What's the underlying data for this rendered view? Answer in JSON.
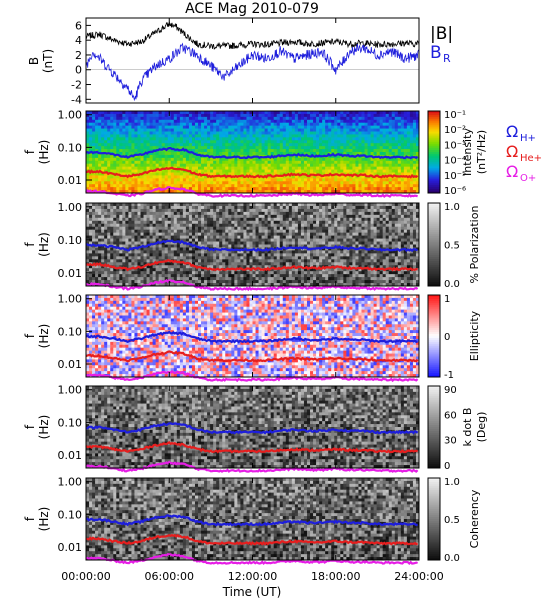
{
  "title": "ACE Mag 2010-079",
  "time_axis": {
    "label": "Time (UT)",
    "ticks": [
      "00:00:00",
      "06:00:00",
      "12:00:00",
      "18:00:00",
      "24:00:00"
    ],
    "range_hours": [
      0,
      24
    ]
  },
  "colors": {
    "B_total": "#000000",
    "B_R": "#1e1edc",
    "H_plus": "#1e1edc",
    "He_plus": "#e61e1e",
    "O_plus": "#e61ee6"
  },
  "chart_data": [
    {
      "type": "line",
      "panel": "B",
      "ylabel": "B",
      "yunit": "(nT)",
      "ylim": [
        -4.5,
        7
      ],
      "yticks": [
        "6",
        "4",
        "2",
        "0",
        "-2",
        "-4"
      ],
      "legend": [
        "|B|",
        "B"
      ],
      "legend_sub": [
        "",
        "R"
      ],
      "series": [
        {
          "name": "|B|",
          "x": [
            0,
            1,
            2,
            3,
            4,
            5,
            5.5,
            6,
            6.5,
            7,
            8,
            9,
            10,
            11,
            12,
            13,
            14,
            15,
            16,
            17,
            18,
            19,
            20,
            21,
            22,
            23,
            24
          ],
          "values": [
            4.5,
            4.8,
            4.0,
            3.5,
            3.8,
            5.0,
            5.6,
            6.2,
            5.8,
            5.0,
            3.5,
            3.2,
            3.2,
            3.3,
            3.5,
            3.4,
            3.6,
            3.8,
            3.5,
            3.6,
            3.8,
            3.5,
            3.6,
            3.4,
            3.5,
            3.6,
            3.5
          ]
        },
        {
          "name": "B_R",
          "x": [
            0,
            0.5,
            1,
            2,
            3,
            3.5,
            4,
            5,
            6,
            7,
            8,
            9,
            10,
            11,
            12,
            13,
            14,
            15,
            16,
            17,
            18,
            18.5,
            19,
            20,
            21,
            22,
            23,
            24
          ],
          "values": [
            0.5,
            2.5,
            1.5,
            -0.5,
            -2.5,
            -4.0,
            -1.5,
            0.5,
            1.5,
            3.0,
            2.0,
            0.5,
            -1.0,
            0.5,
            2.0,
            1.5,
            2.5,
            1.5,
            2.0,
            2.5,
            0.0,
            1.0,
            2.5,
            3.0,
            2.0,
            2.5,
            1.5,
            2.0
          ]
        }
      ]
    },
    {
      "type": "heatmap",
      "panel": "intensity",
      "ylabel": "f",
      "yunit": "(Hz)",
      "yscale": "log",
      "ylim": [
        0.004,
        1.3
      ],
      "yticks": [
        "1.00",
        "0.10",
        "0.01"
      ],
      "colorbar": {
        "label": "Intensity",
        "unit": "(nT²/Hz)",
        "scale": "log",
        "range": [
          1e-06,
          0.3
        ],
        "ticks": [
          "10⁻¹",
          "10⁻²",
          "10⁻³",
          "10⁻⁴",
          "10⁻⁵",
          "10⁻⁶"
        ],
        "colormap": "rainbow"
      },
      "gyrofrequency_legend": [
        "Ω",
        "Ω",
        "Ω"
      ],
      "gyrofrequency_legend_sub": [
        "H+",
        "He+",
        "O+"
      ]
    },
    {
      "type": "heatmap",
      "panel": "polarization",
      "ylabel": "f",
      "yunit": "(Hz)",
      "yscale": "log",
      "ylim": [
        0.004,
        1.3
      ],
      "yticks": [
        "1.00",
        "0.10",
        "0.01"
      ],
      "colorbar": {
        "label": "% Polarization",
        "unit": "",
        "range": [
          0,
          1
        ],
        "ticks": [
          "1.0",
          "0.5",
          "0.0"
        ],
        "colormap": "gray"
      }
    },
    {
      "type": "heatmap",
      "panel": "ellipticity",
      "ylabel": "f",
      "yunit": "(Hz)",
      "yscale": "log",
      "ylim": [
        0.004,
        1.3
      ],
      "yticks": [
        "1.00",
        "0.10",
        "0.01"
      ],
      "colorbar": {
        "label": "Ellipticity",
        "unit": "",
        "range": [
          -1,
          1
        ],
        "ticks": [
          "1",
          "0",
          "-1"
        ],
        "colormap": "blue-white-red"
      }
    },
    {
      "type": "heatmap",
      "panel": "k_dot_b",
      "ylabel": "f",
      "yunit": "(Hz)",
      "yscale": "log",
      "ylim": [
        0.004,
        1.3
      ],
      "yticks": [
        "1.00",
        "0.10",
        "0.01"
      ],
      "colorbar": {
        "label": "k dot B",
        "unit": "(Deg)",
        "range": [
          0,
          90
        ],
        "ticks": [
          "90",
          "60",
          "30",
          "0"
        ],
        "colormap": "gray"
      }
    },
    {
      "type": "heatmap",
      "panel": "coherency",
      "ylabel": "f",
      "yunit": "(Hz)",
      "yscale": "log",
      "ylim": [
        0.004,
        1.3
      ],
      "yticks": [
        "1.00",
        "0.10",
        "0.01"
      ],
      "colorbar": {
        "label": "Coherency",
        "unit": "",
        "range": [
          0,
          1
        ],
        "ticks": [
          "1.0",
          "0.5",
          "0.0"
        ],
        "colormap": "gray"
      }
    }
  ],
  "gyrofrequency_curves": {
    "x": [
      0,
      1,
      2,
      3,
      4,
      5,
      6,
      7,
      8,
      9,
      10,
      11,
      12,
      13,
      14,
      15,
      16,
      17,
      18,
      19,
      20,
      21,
      22,
      23,
      24
    ],
    "H_plus_hz": [
      0.07,
      0.07,
      0.06,
      0.05,
      0.06,
      0.08,
      0.09,
      0.085,
      0.06,
      0.05,
      0.05,
      0.05,
      0.05,
      0.05,
      0.055,
      0.06,
      0.055,
      0.055,
      0.06,
      0.055,
      0.055,
      0.05,
      0.05,
      0.05,
      0.05
    ],
    "He_plus_hz": [
      0.018,
      0.018,
      0.015,
      0.013,
      0.015,
      0.02,
      0.023,
      0.021,
      0.015,
      0.013,
      0.013,
      0.013,
      0.013,
      0.013,
      0.014,
      0.015,
      0.014,
      0.014,
      0.015,
      0.014,
      0.014,
      0.013,
      0.013,
      0.013,
      0.013
    ],
    "O_plus_hz": [
      0.0045,
      0.0045,
      0.0038,
      0.0033,
      0.0038,
      0.005,
      0.0058,
      0.0053,
      0.0038,
      0.0033,
      0.0033,
      0.0033,
      0.0033,
      0.0033,
      0.0035,
      0.0038,
      0.0035,
      0.0035,
      0.0038,
      0.0035,
      0.0035,
      0.0033,
      0.0033,
      0.0033,
      0.0033
    ]
  }
}
